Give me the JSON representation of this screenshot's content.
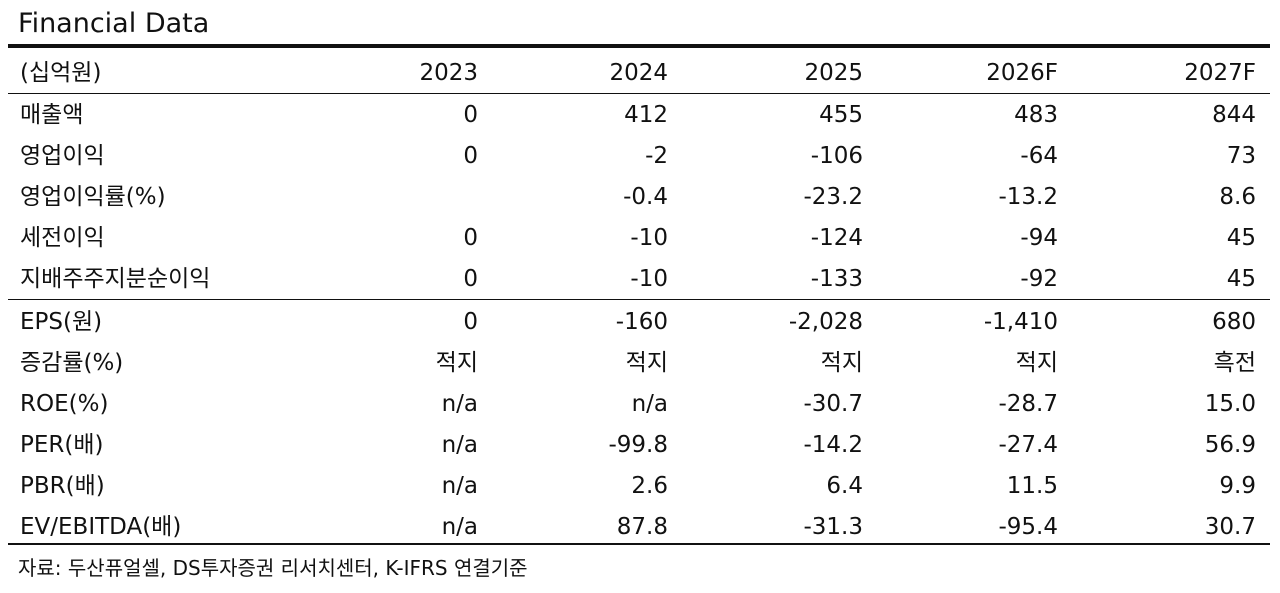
{
  "title": "Financial Data",
  "header": {
    "unit": "(십억원)",
    "years": [
      "2023",
      "2024",
      "2025",
      "2026F",
      "2027F"
    ]
  },
  "section1": [
    {
      "label": "매출액",
      "values": [
        "0",
        "412",
        "455",
        "483",
        "844"
      ]
    },
    {
      "label": "영업이익",
      "values": [
        "0",
        "-2",
        "-106",
        "-64",
        "73"
      ]
    },
    {
      "label": "영업이익률(%)",
      "values": [
        "",
        "-0.4",
        "-23.2",
        "-13.2",
        "8.6"
      ]
    },
    {
      "label": "세전이익",
      "values": [
        "0",
        "-10",
        "-124",
        "-94",
        "45"
      ]
    },
    {
      "label": "지배주주지분순이익",
      "values": [
        "0",
        "-10",
        "-133",
        "-92",
        "45"
      ]
    }
  ],
  "section2": [
    {
      "label": "EPS(원)",
      "values": [
        "0",
        "-160",
        "-2,028",
        "-1,410",
        "680"
      ]
    },
    {
      "label": "증감률(%)",
      "values": [
        "적지",
        "적지",
        "적지",
        "적지",
        "흑전"
      ]
    },
    {
      "label": "ROE(%)",
      "values": [
        "n/a",
        "n/a",
        "-30.7",
        "-28.7",
        "15.0"
      ]
    },
    {
      "label": "PER(배)",
      "values": [
        "n/a",
        "-99.8",
        "-14.2",
        "-27.4",
        "56.9"
      ]
    },
    {
      "label": "PBR(배)",
      "values": [
        "n/a",
        "2.6",
        "6.4",
        "11.5",
        "9.9"
      ]
    },
    {
      "label": "EV/EBITDA(배)",
      "values": [
        "n/a",
        "87.8",
        "-31.3",
        "-95.4",
        "30.7"
      ]
    }
  ],
  "source": "자료: 두산퓨얼셀, DS투자증권 리서치센터, K-IFRS 연결기준"
}
